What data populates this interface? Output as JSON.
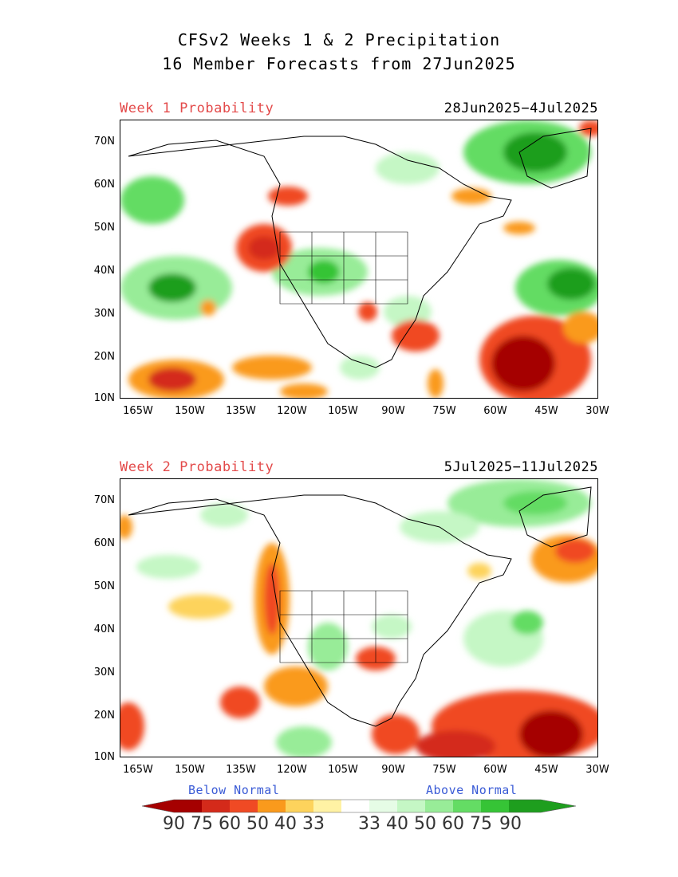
{
  "title": {
    "line1": "CFSv2 Weeks 1 & 2 Precipitation",
    "line2": "16 Member Forecasts from 27Jun2025"
  },
  "panels": [
    {
      "label": "Week 1 Probability",
      "dates": "28Jun2025−4Jul2025"
    },
    {
      "label": "Week 2 Probability",
      "dates": "5Jul2025−11Jul2025"
    }
  ],
  "axes": {
    "lat_labels": [
      "70N",
      "60N",
      "50N",
      "40N",
      "30N",
      "20N",
      "10N"
    ],
    "lon_labels": [
      "165W",
      "150W",
      "135W",
      "120W",
      "105W",
      "90W",
      "75W",
      "60W",
      "45W",
      "30W"
    ]
  },
  "legend": {
    "below_label": "Below Normal",
    "above_label": "Above Normal",
    "values": [
      "90",
      "75",
      "60",
      "50",
      "40",
      "33",
      "33",
      "40",
      "50",
      "60",
      "75",
      "90"
    ],
    "colors_below": [
      "#a50000",
      "#d42a1a",
      "#f04a24",
      "#fa9a1c",
      "#fdd35c",
      "#fff2a4"
    ],
    "colors_above": [
      "#e6fce6",
      "#c5f7c5",
      "#98ec98",
      "#64dc64",
      "#36c436",
      "#1e9e1e"
    ]
  }
}
